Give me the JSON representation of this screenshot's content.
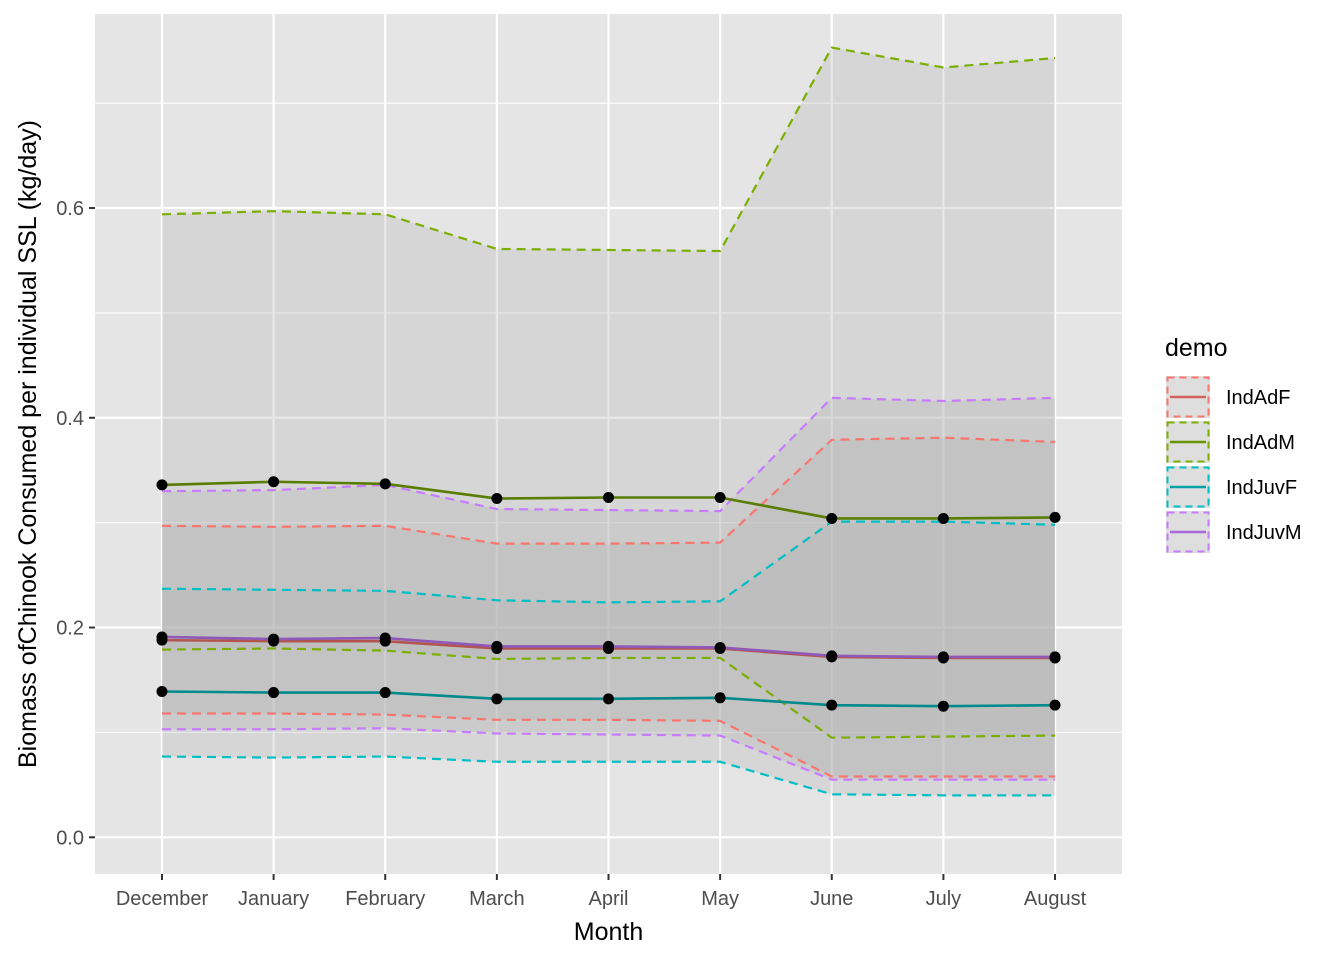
{
  "chart_data": {
    "type": "line",
    "title": "",
    "xlabel": "Month",
    "ylabel": "Biomass ofChinook Consumed per individual SSL (kg/day)",
    "categories": [
      "December",
      "January",
      "February",
      "March",
      "April",
      "May",
      "June",
      "July",
      "August"
    ],
    "ylim": [
      -0.035,
      0.785
    ],
    "yticks": [
      0.0,
      0.2,
      0.4,
      0.6
    ],
    "ytick_labels": [
      "0.0",
      "0.2",
      "0.4",
      "0.6"
    ],
    "grid": true,
    "background": "#e5e5e5",
    "band_fill": "#b3b3b3",
    "point_color": "#000000",
    "legend": {
      "title": "demo",
      "placement": "right"
    },
    "series": [
      {
        "name": "IndAdF",
        "color": "#f8766d",
        "mean": [
          0.188,
          0.187,
          0.187,
          0.18,
          0.18,
          0.18,
          0.172,
          0.171,
          0.171
        ],
        "upper": [
          0.297,
          0.296,
          0.297,
          0.28,
          0.28,
          0.281,
          0.379,
          0.381,
          0.377
        ],
        "lower": [
          0.118,
          0.118,
          0.117,
          0.112,
          0.112,
          0.111,
          0.058,
          0.058,
          0.058
        ]
      },
      {
        "name": "IndAdM",
        "color": "#7cae00",
        "mean": [
          0.336,
          0.339,
          0.337,
          0.323,
          0.324,
          0.324,
          0.304,
          0.304,
          0.305
        ],
        "upper": [
          0.594,
          0.597,
          0.594,
          0.561,
          0.56,
          0.559,
          0.753,
          0.734,
          0.743
        ],
        "lower": [
          0.179,
          0.18,
          0.178,
          0.17,
          0.171,
          0.171,
          0.095,
          0.096,
          0.097
        ]
      },
      {
        "name": "IndJuvF",
        "color": "#00bfc4",
        "mean": [
          0.139,
          0.138,
          0.138,
          0.132,
          0.132,
          0.133,
          0.126,
          0.125,
          0.126
        ],
        "upper": [
          0.237,
          0.236,
          0.235,
          0.226,
          0.224,
          0.225,
          0.301,
          0.301,
          0.298
        ],
        "lower": [
          0.077,
          0.076,
          0.077,
          0.072,
          0.072,
          0.072,
          0.041,
          0.04,
          0.04
        ]
      },
      {
        "name": "IndJuvM",
        "color": "#c77cff",
        "mean": [
          0.191,
          0.189,
          0.19,
          0.182,
          0.182,
          0.181,
          0.173,
          0.172,
          0.172
        ],
        "upper": [
          0.33,
          0.331,
          0.336,
          0.313,
          0.312,
          0.311,
          0.419,
          0.416,
          0.419
        ],
        "lower": [
          0.103,
          0.103,
          0.104,
          0.099,
          0.098,
          0.097,
          0.055,
          0.055,
          0.055
        ]
      }
    ]
  }
}
